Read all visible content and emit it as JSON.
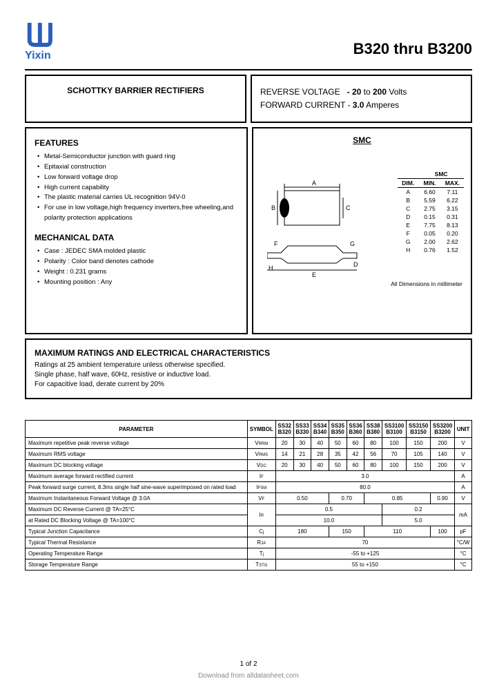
{
  "brand": "Yixin",
  "title": "B320 thru B3200",
  "leftBox": "SCHOTTKY BARRIER RECTIFIERS",
  "rightBox": {
    "l1a": "REVERSE VOLTAGE",
    "l1b": "- 20",
    "l1c": "to",
    "l1d": "200",
    "l1e": "Volts",
    "l2a": "FORWARD CURRENT -",
    "l2b": "3.0",
    "l2c": "Amperes"
  },
  "features": {
    "heading": "FEATURES",
    "items": [
      "Metal-Semiconductor junction with guard ring",
      "Epitaxial construction",
      "Low forward voltage drop",
      "High current capability",
      "The plastic material carries UL recognition 94V-0",
      "For use in low voltage,high frequency inverters,free wheeling,and polarity protection applications"
    ]
  },
  "mech": {
    "heading": "MECHANICAL DATA",
    "items": [
      "Case : JEDEC SMA molded plastic",
      "Polarity : Color band denotes cathode",
      "Weight : 0.231 grams",
      "Mounting position : Any"
    ]
  },
  "smcLabel": "SMC",
  "dims": {
    "header": [
      "DIM.",
      "MIN.",
      "MAX."
    ],
    "superheader": "SMC",
    "rows": [
      [
        "A",
        "6.60",
        "7.11"
      ],
      [
        "B",
        "5.59",
        "6.22"
      ],
      [
        "C",
        "2.75",
        "3.15"
      ],
      [
        "D",
        "0.15",
        "0.31"
      ],
      [
        "E",
        "7.75",
        "8.13"
      ],
      [
        "F",
        "0.05",
        "0.20"
      ],
      [
        "G",
        "2.00",
        "2.62"
      ],
      [
        "H",
        "0.76",
        "1.52"
      ]
    ],
    "note": "All Dimensions in millimeter"
  },
  "maxBox": {
    "heading": "MAXIMUM RATINGS AND ELECTRICAL CHARACTERISTICS",
    "l1": "Ratings at 25    ambient temperature unless otherwise specified.",
    "l2": "Single phase, half wave, 60Hz, resistive or inductive load.",
    "l3": "For capacitive load, derate current by 20%"
  },
  "table": {
    "cols": [
      "PARAMETER",
      "SYMBOL",
      "SS32 B320",
      "SS33 B330",
      "SS34 B340",
      "SS35 B350",
      "SS36 B360",
      "SS38 B380",
      "SS3100 B3100",
      "SS3150 B3150",
      "SS3200 B3200",
      "UNIT"
    ],
    "rows": [
      {
        "p": "Maximum repetitive peak reverse voltage",
        "s": "V",
        "sub": "RRM",
        "v": [
          "20",
          "30",
          "40",
          "50",
          "60",
          "80",
          "100",
          "150",
          "200"
        ],
        "u": "V"
      },
      {
        "p": "Maximum RMS voltage",
        "s": "V",
        "sub": "RMS",
        "v": [
          "14",
          "21",
          "28",
          "35",
          "42",
          "56",
          "70",
          "105",
          "140"
        ],
        "u": "V"
      },
      {
        "p": "Maximum DC blocking voltage",
        "s": "V",
        "sub": "DC",
        "v": [
          "20",
          "30",
          "40",
          "50",
          "60",
          "80",
          "100",
          "150",
          "200"
        ],
        "u": "V"
      },
      {
        "p": "Maximum average forward rectified current",
        "s": "I",
        "sub": "F",
        "span": "3.0",
        "u": "A"
      },
      {
        "p": "Peak forward surge current, 8.3ms single half sine-wave superimposed on rated load",
        "s": "I",
        "sub": "FSM",
        "span": "80.0",
        "u": "A"
      },
      {
        "p": "Maximum Instantaneous Forward Voltage @ 3.0A",
        "s": "V",
        "sub": "F",
        "groups": [
          [
            "0.50",
            3
          ],
          [
            "0.70",
            2
          ],
          [
            "0.85",
            3
          ],
          [
            "0.90",
            1
          ]
        ],
        "u": "V"
      },
      {
        "p": "Maximum DC Reverse Current @ TA=25°C",
        "s": "I",
        "sub": "R",
        "groups": [
          [
            "0.5",
            6
          ],
          [
            "0.2",
            3
          ]
        ],
        "u": "mA",
        "rowspan2": true
      },
      {
        "p": "at Rated DC Blocking Voltage @ TA=100°C",
        "groups": [
          [
            "10.0",
            6
          ],
          [
            "5.0",
            3
          ]
        ]
      },
      {
        "p": "Typical Junction Capacitance",
        "s": "C",
        "sub": "j",
        "groups": [
          [
            "180",
            3
          ],
          [
            "150",
            2
          ],
          [
            "110",
            3
          ],
          [
            "100",
            1
          ]
        ],
        "u": "pF"
      },
      {
        "p": "Typical Thermal Resistance",
        "s": "R",
        "sub": "JA",
        "span": "70",
        "u": "°C/W"
      },
      {
        "p": "Operating Temperature Range",
        "s": "T",
        "sub": "j",
        "span": "-55 to +125",
        "u": "°C"
      },
      {
        "p": "Storage Temperature Range",
        "s": "T",
        "sub": "STG",
        "span": "55 to +150",
        "u": "°C"
      }
    ]
  },
  "pageNum": "1 of 2",
  "download": "Download from alldatasheet.com",
  "colors": {
    "border": "#000000",
    "brand": "#2a5fb8",
    "bg": "#ffffff"
  }
}
